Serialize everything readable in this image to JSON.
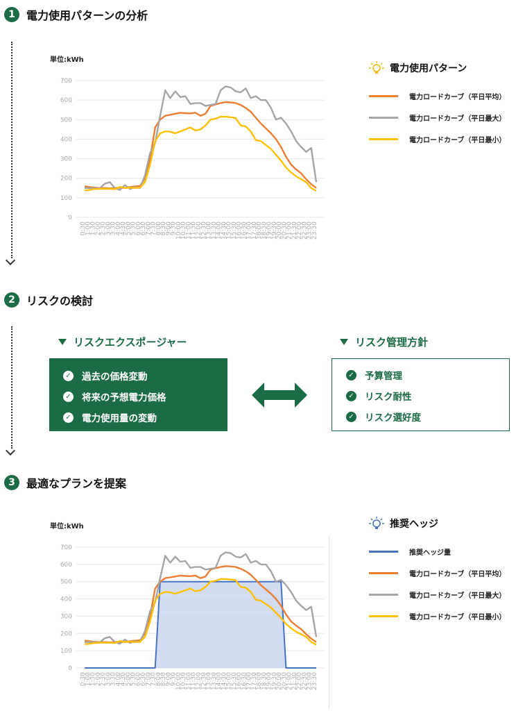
{
  "steps": [
    {
      "number": "1",
      "title": "電力使用パターンの分析"
    },
    {
      "number": "2",
      "title": "リスクの検討"
    },
    {
      "number": "3",
      "title": "最適なプランを提案"
    }
  ],
  "colors": {
    "green": "#1b6b45",
    "average": "#ed7d31",
    "max": "#a5a5a5",
    "min": "#ffc000",
    "hedge": "#4472c4",
    "hedge_fill": "#c8d3ec"
  },
  "chart1": {
    "unit_label": "単位:kWh",
    "legend_title": "電力使用パターン",
    "legend_icon": "lightbulb-icon",
    "legend": [
      "電力ロードカーブ（平日平均）",
      "電力ロードカーブ（平日最大）",
      "電力ロードカーブ（平日最小）"
    ]
  },
  "risk": {
    "left_title": "リスクエクスポージャー",
    "left_items": [
      "過去の価格変動",
      "将来の予想電力価格",
      "電力使用量の変動"
    ],
    "right_title": "リスク管理方針",
    "right_items": [
      "予算管理",
      "リスク耐性",
      "リスク選好度"
    ],
    "arrow_icon": "double-arrow-icon"
  },
  "chart2": {
    "unit_label": "単位:kWh",
    "legend_title": "推奨ヘッジ",
    "legend_icon": "lightbulb-icon",
    "legend": [
      "推奨ヘッジ量",
      "電力ロードカーブ（平日平均）",
      "電力ロードカーブ（平日最大）",
      "電力ロードカーブ（平日最小）"
    ]
  },
  "chart_data": [
    {
      "type": "line",
      "title": "",
      "xlabel": "",
      "ylabel": "単位:kWh",
      "ylim": [
        0,
        700
      ],
      "yticks": [
        0,
        100,
        200,
        300,
        400,
        500,
        600,
        700
      ],
      "x": [
        "0:30",
        "1:00",
        "1:30",
        "2:00",
        "2:30",
        "3:00",
        "3:30",
        "4:00",
        "4:30",
        "5:00",
        "5:30",
        "6:00",
        "6:30",
        "7:00",
        "7:30",
        "8:00",
        "8:30",
        "9:00",
        "9:30",
        "10:00",
        "10:30",
        "11:00",
        "11:30",
        "12:00",
        "12:30",
        "13:00",
        "13:30",
        "14:00",
        "14:30",
        "15:00",
        "15:30",
        "16:00",
        "16:30",
        "17:00",
        "17:30",
        "18:00",
        "18:30",
        "19:00",
        "19:30",
        "20:00",
        "20:30",
        "21:00",
        "21:30",
        "22:00",
        "22:30",
        "23:00",
        "23:30"
      ],
      "grid": true,
      "series": [
        {
          "name": "電力ロードカーブ（平日平均）",
          "color": "#ed7d31",
          "values": [
            158,
            155,
            152,
            150,
            150,
            148,
            150,
            152,
            150,
            155,
            158,
            160,
            200,
            300,
            460,
            500,
            520,
            525,
            530,
            535,
            533,
            532,
            535,
            520,
            530,
            570,
            578,
            585,
            590,
            588,
            585,
            575,
            560,
            540,
            510,
            480,
            455,
            430,
            400,
            360,
            310,
            270,
            245,
            225,
            195,
            170,
            150
          ]
        },
        {
          "name": "電力ロードカーブ（平日最大）",
          "color": "#a5a5a5",
          "values": [
            150,
            150,
            150,
            148,
            172,
            180,
            150,
            140,
            165,
            145,
            155,
            150,
            215,
            330,
            380,
            520,
            650,
            610,
            645,
            615,
            620,
            580,
            585,
            585,
            570,
            575,
            580,
            650,
            670,
            665,
            645,
            640,
            660,
            610,
            620,
            600,
            600,
            560,
            500,
            510,
            480,
            440,
            390,
            360,
            335,
            355,
            180
          ]
        },
        {
          "name": "電力ロードカーブ（平日最小）",
          "color": "#ffc000",
          "values": [
            138,
            140,
            145,
            146,
            146,
            146,
            144,
            156,
            150,
            152,
            150,
            152,
            180,
            270,
            390,
            430,
            440,
            438,
            430,
            440,
            450,
            460,
            445,
            450,
            470,
            500,
            505,
            515,
            515,
            512,
            508,
            470,
            465,
            440,
            395,
            390,
            370,
            350,
            320,
            290,
            255,
            230,
            210,
            195,
            180,
            150,
            135
          ]
        }
      ]
    },
    {
      "type": "area",
      "title": "",
      "xlabel": "",
      "ylabel": "単位:kWh",
      "ylim": [
        0,
        700
      ],
      "yticks": [
        0,
        100,
        200,
        300,
        400,
        500,
        600,
        700
      ],
      "x": [
        "0:30",
        "1:00",
        "1:30",
        "2:00",
        "2:30",
        "3:00",
        "3:30",
        "4:00",
        "4:30",
        "5:00",
        "5:30",
        "6:00",
        "6:30",
        "7:00",
        "7:30",
        "8:00",
        "8:30",
        "9:00",
        "9:30",
        "10:00",
        "10:30",
        "11:00",
        "11:30",
        "12:00",
        "12:30",
        "13:00",
        "13:30",
        "14:00",
        "14:30",
        "15:00",
        "15:30",
        "16:00",
        "16:30",
        "17:00",
        "17:30",
        "18:00",
        "18:30",
        "19:00",
        "19:30",
        "20:00",
        "20:30",
        "21:00",
        "21:30",
        "22:00",
        "22:30",
        "23:00",
        "23:30"
      ],
      "grid": true,
      "series": [
        {
          "name": "推奨ヘッジ量",
          "color": "#4472c4",
          "values": [
            0,
            0,
            0,
            0,
            0,
            0,
            0,
            0,
            0,
            0,
            0,
            0,
            0,
            0,
            0,
            500,
            500,
            500,
            500,
            500,
            500,
            500,
            500,
            500,
            500,
            500,
            500,
            500,
            500,
            500,
            500,
            500,
            500,
            500,
            500,
            500,
            500,
            500,
            500,
            500,
            0,
            0,
            0,
            0,
            0,
            0,
            0
          ]
        },
        {
          "name": "電力ロードカーブ（平日平均）",
          "color": "#ed7d31",
          "values": [
            158,
            155,
            152,
            150,
            150,
            148,
            150,
            152,
            150,
            155,
            158,
            160,
            200,
            300,
            460,
            500,
            520,
            525,
            530,
            535,
            533,
            532,
            535,
            520,
            530,
            570,
            578,
            585,
            590,
            588,
            585,
            575,
            560,
            540,
            510,
            480,
            455,
            430,
            400,
            360,
            310,
            270,
            245,
            225,
            195,
            170,
            150
          ]
        },
        {
          "name": "電力ロードカーブ（平日最大）",
          "color": "#a5a5a5",
          "values": [
            150,
            150,
            150,
            148,
            172,
            180,
            150,
            140,
            165,
            145,
            155,
            150,
            215,
            330,
            380,
            520,
            650,
            610,
            645,
            615,
            620,
            580,
            585,
            585,
            570,
            575,
            580,
            650,
            670,
            665,
            645,
            640,
            660,
            610,
            620,
            600,
            600,
            560,
            500,
            510,
            480,
            440,
            390,
            360,
            335,
            355,
            180
          ]
        },
        {
          "name": "電力ロードカーブ（平日最小）",
          "color": "#ffc000",
          "values": [
            138,
            140,
            145,
            146,
            146,
            146,
            144,
            156,
            150,
            152,
            150,
            152,
            180,
            270,
            390,
            430,
            440,
            438,
            430,
            440,
            450,
            460,
            445,
            450,
            470,
            500,
            505,
            515,
            515,
            512,
            508,
            470,
            465,
            440,
            395,
            390,
            370,
            350,
            320,
            290,
            255,
            230,
            210,
            195,
            180,
            150,
            135
          ]
        }
      ]
    }
  ]
}
